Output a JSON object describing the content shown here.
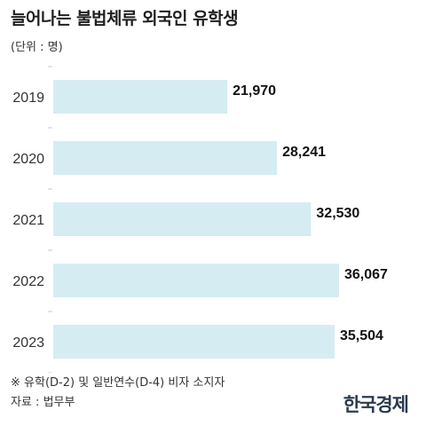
{
  "title": "늘어나는 불법체류 외국인 유학생",
  "unit": "(단위 : 명)",
  "footnote": "※ 유학(D-2) 및 일반연수(D-4) 비자 소지자",
  "source": "자료 : 법무부",
  "logo": "한국경제",
  "colors": {
    "bar": "#d6ecf3",
    "value_text": "#111111",
    "axis_text": "#333333",
    "tick": "#c8c8c8"
  },
  "chart_data": {
    "type": "bar",
    "orientation": "horizontal",
    "categories": [
      "2019",
      "2020",
      "2021",
      "2022",
      "2023"
    ],
    "values": [
      21970,
      28241,
      32530,
      36067,
      35504
    ],
    "value_labels": [
      "21,970",
      "28,241",
      "32,530",
      "36,067",
      "35,504"
    ],
    "xlim": [
      0,
      36067
    ],
    "grid": false,
    "legend": "none"
  }
}
